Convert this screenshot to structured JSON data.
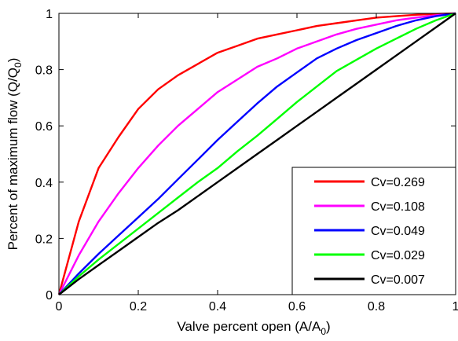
{
  "chart_data": {
    "type": "line",
    "xlabel": "Valve percent open (A/A0)",
    "xlabel_main": "Valve percent open (A/A",
    "xlabel_sub": "0",
    "xlabel_close": ")",
    "ylabel": "Percent of maximum flow (Q/Q0)",
    "ylabel_main": "Percent of maximum flow (Q/Q",
    "ylabel_sub": "0",
    "ylabel_close": ")",
    "xlim": [
      0,
      1
    ],
    "ylim": [
      0,
      1
    ],
    "xticks": [
      0,
      0.2,
      0.4,
      0.6,
      0.8,
      1
    ],
    "xtick_labels": [
      "0",
      "0.2",
      "0.4",
      "0.6",
      "0.8",
      "1"
    ],
    "yticks": [
      0,
      0.2,
      0.4,
      0.6,
      0.8,
      1
    ],
    "ytick_labels": [
      "0",
      "0.2",
      "0.4",
      "0.6",
      "0.8",
      "1"
    ],
    "grid": false,
    "legend_position": "bottom-right",
    "x": [
      0,
      0.05,
      0.1,
      0.15,
      0.2,
      0.25,
      0.3,
      0.35,
      0.4,
      0.45,
      0.5,
      0.55,
      0.6,
      0.65,
      0.7,
      0.75,
      0.8,
      0.85,
      0.9,
      0.95,
      1.0
    ],
    "series": [
      {
        "name": "Cv=0.269",
        "color": "#ff0000",
        "values": [
          0,
          0.26,
          0.45,
          0.56,
          0.66,
          0.73,
          0.78,
          0.82,
          0.86,
          0.885,
          0.91,
          0.925,
          0.94,
          0.955,
          0.965,
          0.975,
          0.985,
          0.99,
          0.995,
          0.998,
          1.0
        ]
      },
      {
        "name": "Cv=0.108",
        "color": "#ff00ff",
        "values": [
          0,
          0.14,
          0.26,
          0.36,
          0.45,
          0.53,
          0.6,
          0.66,
          0.72,
          0.765,
          0.81,
          0.84,
          0.875,
          0.9,
          0.925,
          0.945,
          0.96,
          0.975,
          0.985,
          0.993,
          1.0
        ]
      },
      {
        "name": "Cv=0.049",
        "color": "#0000ff",
        "values": [
          0,
          0.075,
          0.145,
          0.21,
          0.275,
          0.34,
          0.41,
          0.48,
          0.55,
          0.615,
          0.68,
          0.74,
          0.79,
          0.84,
          0.875,
          0.905,
          0.93,
          0.955,
          0.975,
          0.99,
          1.0
        ]
      },
      {
        "name": "Cv=0.029",
        "color": "#00ff00",
        "values": [
          0,
          0.065,
          0.125,
          0.18,
          0.235,
          0.29,
          0.345,
          0.4,
          0.45,
          0.51,
          0.565,
          0.625,
          0.685,
          0.74,
          0.795,
          0.835,
          0.875,
          0.91,
          0.945,
          0.975,
          1.0
        ]
      },
      {
        "name": "Cv=0.007",
        "color": "#000000",
        "values": [
          0,
          0.055,
          0.105,
          0.155,
          0.205,
          0.255,
          0.3,
          0.35,
          0.4,
          0.45,
          0.5,
          0.55,
          0.6,
          0.65,
          0.7,
          0.75,
          0.8,
          0.85,
          0.9,
          0.95,
          1.0
        ]
      }
    ]
  }
}
